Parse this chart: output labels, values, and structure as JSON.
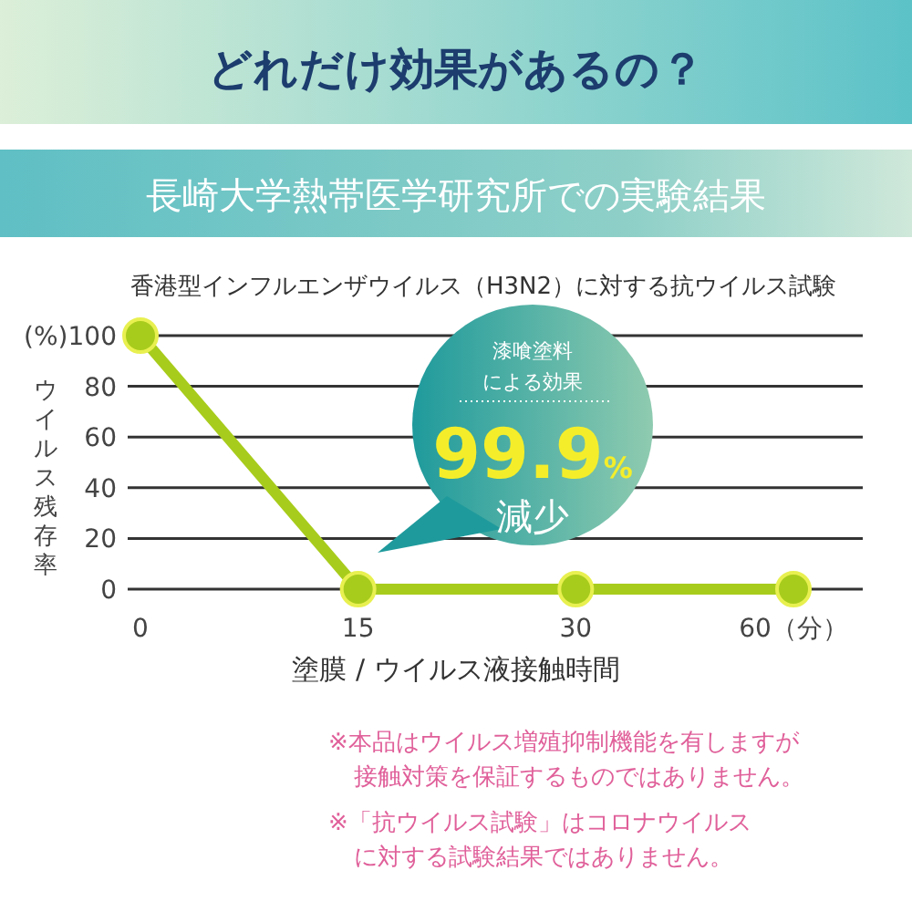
{
  "chart_data": {
    "type": "line",
    "title": "どれだけ効果があるの？",
    "subtitle": "長崎大学熱帯医学研究所での実験結果",
    "annotations": [
      "香港型インフルエンザウイルス（H3N2）に対する抗ウイルス試験",
      "漆喰塗料",
      "による効果",
      "99.9%",
      "減少",
      "※本品はウイルス増殖抑制機能を有しますが",
      "接触対策を保証するものではありません。",
      "※「抗ウイルス試験」はコロナウイルス",
      "に対する試験結果ではありません。"
    ],
    "categories": [
      "0",
      "15",
      "30",
      "60（分）"
    ],
    "series": [
      {
        "color": "#a8cc1c",
        "values": [
          100,
          0,
          0,
          0
        ]
      }
    ],
    "ylabel": "ウイルス残存率",
    "xlabel": "塗膜 / ウイルス液接触時間",
    "ylim": [
      0,
      100
    ],
    "yticks": [
      0,
      20,
      40,
      60,
      80,
      {
        "value": 100,
        "label": "(%)100"
      }
    ],
    "grid": "y",
    "marker": "circle",
    "line_style": "solid"
  }
}
